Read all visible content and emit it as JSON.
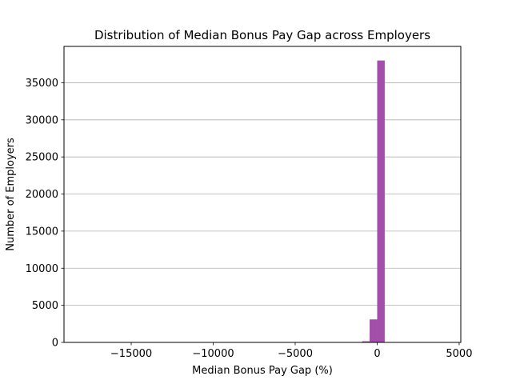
{
  "chart_data": {
    "type": "bar",
    "title": "Distribution of Median Bonus Pay Gap across Employers",
    "xlabel": "Median Bonus Pay Gap (%)",
    "ylabel": "Number of Employers",
    "xlim": [
      -19100,
      5100
    ],
    "ylim": [
      0,
      39900
    ],
    "bin_width": 460,
    "xticks": [
      -15000,
      -10000,
      -5000,
      0,
      5000
    ],
    "xtick_labels": [
      "−15000",
      "−10000",
      "−5000",
      "0",
      "5000"
    ],
    "yticks": [
      0,
      5000,
      10000,
      15000,
      20000,
      25000,
      30000,
      35000
    ],
    "ytick_labels": [
      "0",
      "5000",
      "10000",
      "15000",
      "20000",
      "25000",
      "30000",
      "35000"
    ],
    "grid": "y",
    "bar_color": "#a14fa8",
    "bins": [
      {
        "start": -920,
        "end": -460,
        "value": 150
      },
      {
        "start": -460,
        "end": 0,
        "value": 3100
      },
      {
        "start": 0,
        "end": 460,
        "value": 38000
      },
      {
        "start": 460,
        "end": 920,
        "value": 30
      }
    ]
  }
}
